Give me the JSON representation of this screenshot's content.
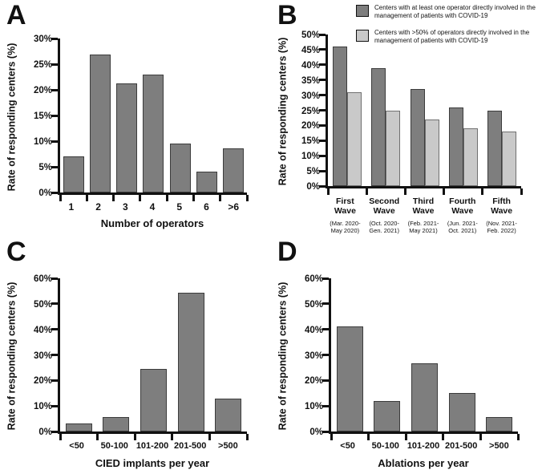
{
  "figure": {
    "background": "#ffffff",
    "colors": {
      "axis": "#111111",
      "bar_dark": "#7e7e7e",
      "bar_dark_border": "#3c3c3c",
      "bar_light": "#c9c9c9",
      "bar_light_border": "#707070"
    }
  },
  "chart_data": [
    {
      "panel": "A",
      "type": "bar",
      "title": "",
      "ylabel": "Rate of responding centers (%)",
      "xlabel": "Number of operators",
      "ylim": [
        0,
        30
      ],
      "ytick_step": 5,
      "ytick_format": "percent",
      "grid": false,
      "categories": [
        "1",
        "2",
        "3",
        "4",
        "5",
        "6",
        ">6"
      ],
      "values": [
        7.1,
        26.8,
        21.3,
        22.9,
        9.5,
        4.0,
        8.6
      ]
    },
    {
      "panel": "B",
      "type": "bar",
      "title": "",
      "ylabel": "Rate of responding centers (%)",
      "xlabel": "",
      "ylim": [
        0,
        50
      ],
      "ytick_step": 5,
      "ytick_format": "percent",
      "grid": false,
      "legend_position": "top-right",
      "categories": [
        "First Wave",
        "Second Wave",
        "Third Wave",
        "Fourth Wave",
        "Fifth Wave"
      ],
      "category_sublabels": [
        "(Mar. 2020-\nMay 2020)",
        "(Oct. 2020-\nGen. 2021)",
        "(Feb. 2021-\nMay 2021)",
        "(Jun. 2021-\nOct. 2021)",
        "(Nov. 2021-\nFeb. 2022)"
      ],
      "series": [
        {
          "name": "Centers with at least one operator directly involved in the management of patients with COVID-19",
          "color": "dark",
          "values": [
            46,
            39,
            32,
            26,
            25
          ]
        },
        {
          "name": "Centers with >50% of operators directly involved in the management of patients with COVID-19",
          "color": "light",
          "values": [
            31,
            25,
            22,
            19,
            18
          ]
        }
      ]
    },
    {
      "panel": "C",
      "type": "bar",
      "title": "",
      "ylabel": "Rate of responding centers (%)",
      "xlabel": "CIED implants per year",
      "ylim": [
        0,
        60
      ],
      "ytick_step": 10,
      "ytick_format": "percent",
      "grid": false,
      "categories": [
        "<50",
        "50-100",
        "101-200",
        "201-500",
        ">500"
      ],
      "values": [
        3.3,
        5.6,
        24.5,
        54.3,
        12.8
      ]
    },
    {
      "panel": "D",
      "type": "bar",
      "title": "",
      "ylabel": "Rate of responding centers (%)",
      "xlabel": "Ablations per year",
      "ylim": [
        0,
        60
      ],
      "ytick_step": 10,
      "ytick_format": "percent",
      "grid": false,
      "categories": [
        "<50",
        "50-100",
        "101-200",
        "201-500",
        ">500"
      ],
      "values": [
        41,
        12,
        26.8,
        15,
        5.6
      ]
    }
  ]
}
